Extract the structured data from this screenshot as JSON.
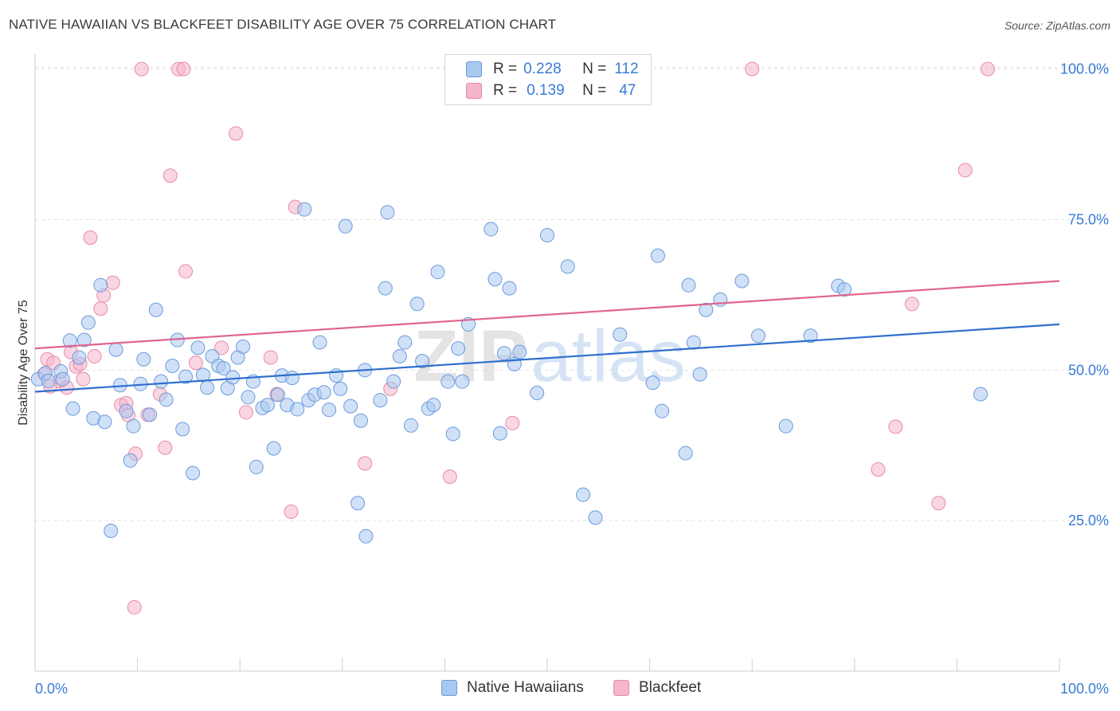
{
  "title": "NATIVE HAWAIIAN VS BLACKFEET DISABILITY AGE OVER 75 CORRELATION CHART",
  "source": "Source: ZipAtlas.com",
  "watermark": "ZIPatlas",
  "legend": {
    "r_label": "R =",
    "n_label": "N =",
    "rows": [
      {
        "r": "0.228",
        "n": "112"
      },
      {
        "r": "0.139",
        "n": "47"
      }
    ]
  },
  "colors": {
    "blue_fill": "#a9c8f0",
    "blue_stroke": "#6c9bdc",
    "blue_line": "#2f6fce",
    "pink_fill": "#f5b5cb",
    "pink_stroke": "#e88aab",
    "pink_line": "#e0648f",
    "axis_text": "#3a7bd5",
    "grid": "#e2e2e2"
  },
  "chart_data": {
    "type": "scatter",
    "title": "NATIVE HAWAIIAN VS BLACKFEET DISABILITY AGE OVER 75 CORRELATION CHART",
    "xlabel": "",
    "ylabel": "Disability Age Over 75",
    "xlim": [
      0,
      100
    ],
    "ylim": [
      0,
      102
    ],
    "x_tick_labels": [
      "0.0%",
      "100.0%"
    ],
    "y_ticks": [
      25,
      50,
      75,
      100
    ],
    "y_tick_labels": [
      "25.0%",
      "50.0%",
      "75.0%",
      "100.0%"
    ],
    "grid": true,
    "legend_position": "bottom",
    "series": [
      {
        "name": "Native Hawaiians",
        "color": "#a9c8f0",
        "r": 0.228,
        "n": 112,
        "trend": {
          "x": [
            0,
            100
          ],
          "y": [
            46.4,
            57.6
          ]
        },
        "points": [
          [
            0.3,
            48.5
          ],
          [
            1.0,
            49.5
          ],
          [
            1.3,
            48.2
          ],
          [
            2.5,
            49.8
          ],
          [
            2.7,
            48.5
          ],
          [
            3.4,
            54.9
          ],
          [
            3.7,
            43.6
          ],
          [
            4.3,
            52.1
          ],
          [
            4.8,
            55.0
          ],
          [
            5.2,
            57.9
          ],
          [
            5.7,
            42.0
          ],
          [
            6.4,
            64.1
          ],
          [
            6.8,
            41.4
          ],
          [
            7.4,
            23.3
          ],
          [
            7.9,
            53.4
          ],
          [
            8.3,
            47.5
          ],
          [
            8.9,
            43.2
          ],
          [
            9.3,
            35.0
          ],
          [
            9.6,
            40.7
          ],
          [
            10.3,
            47.7
          ],
          [
            10.6,
            51.8
          ],
          [
            11.2,
            42.6
          ],
          [
            11.8,
            60.0
          ],
          [
            12.3,
            48.1
          ],
          [
            12.8,
            45.1
          ],
          [
            13.4,
            50.7
          ],
          [
            13.9,
            55.0
          ],
          [
            14.4,
            40.2
          ],
          [
            14.7,
            48.9
          ],
          [
            15.4,
            32.9
          ],
          [
            15.9,
            53.7
          ],
          [
            16.4,
            49.2
          ],
          [
            16.8,
            47.1
          ],
          [
            17.3,
            52.3
          ],
          [
            17.9,
            50.7
          ],
          [
            18.4,
            50.3
          ],
          [
            18.8,
            47.0
          ],
          [
            19.3,
            48.8
          ],
          [
            19.8,
            52.1
          ],
          [
            20.3,
            53.9
          ],
          [
            20.8,
            45.5
          ],
          [
            21.3,
            48.1
          ],
          [
            21.6,
            33.9
          ],
          [
            22.2,
            43.7
          ],
          [
            22.7,
            44.2
          ],
          [
            23.3,
            37.0
          ],
          [
            23.7,
            45.9
          ],
          [
            24.1,
            49.1
          ],
          [
            24.6,
            44.2
          ],
          [
            25.1,
            48.7
          ],
          [
            25.6,
            43.5
          ],
          [
            26.3,
            76.7
          ],
          [
            26.7,
            45.0
          ],
          [
            27.3,
            45.9
          ],
          [
            27.8,
            54.6
          ],
          [
            28.2,
            46.3
          ],
          [
            28.7,
            43.4
          ],
          [
            29.4,
            49.1
          ],
          [
            29.8,
            46.9
          ],
          [
            30.3,
            73.9
          ],
          [
            30.8,
            44.0
          ],
          [
            31.5,
            27.9
          ],
          [
            31.8,
            41.6
          ],
          [
            32.3,
            22.4
          ],
          [
            32.2,
            50.0
          ],
          [
            33.7,
            45.0
          ],
          [
            34.2,
            63.6
          ],
          [
            34.4,
            76.2
          ],
          [
            35.0,
            48.1
          ],
          [
            35.6,
            52.3
          ],
          [
            36.1,
            54.6
          ],
          [
            36.7,
            40.8
          ],
          [
            37.3,
            61.0
          ],
          [
            37.8,
            51.5
          ],
          [
            38.4,
            43.6
          ],
          [
            38.9,
            44.2
          ],
          [
            39.3,
            66.3
          ],
          [
            40.3,
            48.1
          ],
          [
            40.8,
            39.4
          ],
          [
            41.3,
            53.6
          ],
          [
            41.7,
            48.1
          ],
          [
            42.3,
            57.6
          ],
          [
            44.5,
            73.4
          ],
          [
            44.9,
            65.1
          ],
          [
            45.4,
            39.5
          ],
          [
            45.8,
            52.8
          ],
          [
            46.3,
            63.6
          ],
          [
            46.8,
            51.0
          ],
          [
            47.3,
            53.0
          ],
          [
            49.0,
            46.2
          ],
          [
            50.0,
            72.4
          ],
          [
            52.0,
            67.2
          ],
          [
            53.5,
            29.3
          ],
          [
            54.7,
            25.5
          ],
          [
            57.1,
            55.9
          ],
          [
            60.3,
            47.9
          ],
          [
            60.8,
            69.0
          ],
          [
            61.2,
            43.2
          ],
          [
            63.5,
            36.2
          ],
          [
            63.8,
            64.1
          ],
          [
            64.3,
            54.6
          ],
          [
            64.9,
            49.3
          ],
          [
            65.5,
            60.0
          ],
          [
            66.9,
            61.7
          ],
          [
            69.0,
            64.8
          ],
          [
            70.6,
            55.7
          ],
          [
            73.3,
            40.7
          ],
          [
            75.7,
            55.7
          ],
          [
            78.4,
            64.0
          ],
          [
            79.0,
            63.4
          ],
          [
            92.3,
            46.0
          ]
        ]
      },
      {
        "name": "Blackfeet",
        "color": "#f5b5cb",
        "r": 0.139,
        "n": 47,
        "trend": {
          "x": [
            0,
            100
          ],
          "y": [
            53.6,
            64.8
          ]
        },
        "points": [
          [
            0.9,
            49.3
          ],
          [
            1.2,
            51.8
          ],
          [
            1.5,
            47.3
          ],
          [
            1.8,
            51.2
          ],
          [
            2.4,
            48.2
          ],
          [
            3.1,
            47.1
          ],
          [
            3.5,
            53.0
          ],
          [
            4.0,
            50.6
          ],
          [
            4.4,
            51.0
          ],
          [
            4.7,
            48.5
          ],
          [
            5.4,
            72.0
          ],
          [
            5.8,
            52.3
          ],
          [
            6.4,
            60.2
          ],
          [
            6.7,
            62.4
          ],
          [
            7.6,
            64.5
          ],
          [
            8.4,
            44.2
          ],
          [
            8.9,
            44.5
          ],
          [
            9.1,
            42.5
          ],
          [
            9.7,
            10.6
          ],
          [
            9.8,
            36.1
          ],
          [
            10.4,
            100.0
          ],
          [
            11.0,
            42.6
          ],
          [
            12.2,
            46.0
          ],
          [
            12.7,
            37.1
          ],
          [
            13.2,
            82.3
          ],
          [
            14.0,
            100.0
          ],
          [
            14.5,
            100.0
          ],
          [
            14.7,
            66.4
          ],
          [
            15.7,
            51.2
          ],
          [
            18.2,
            53.7
          ],
          [
            19.6,
            89.3
          ],
          [
            20.6,
            43.0
          ],
          [
            23.0,
            52.1
          ],
          [
            23.6,
            46.0
          ],
          [
            25.0,
            26.5
          ],
          [
            25.4,
            77.1
          ],
          [
            32.2,
            34.5
          ],
          [
            34.7,
            46.9
          ],
          [
            40.5,
            32.3
          ],
          [
            46.6,
            41.2
          ],
          [
            70.0,
            100.0
          ],
          [
            82.3,
            33.5
          ],
          [
            84.0,
            40.6
          ],
          [
            85.6,
            61.0
          ],
          [
            88.2,
            27.9
          ],
          [
            90.8,
            83.2
          ],
          [
            93.0,
            100.0
          ]
        ]
      }
    ]
  }
}
